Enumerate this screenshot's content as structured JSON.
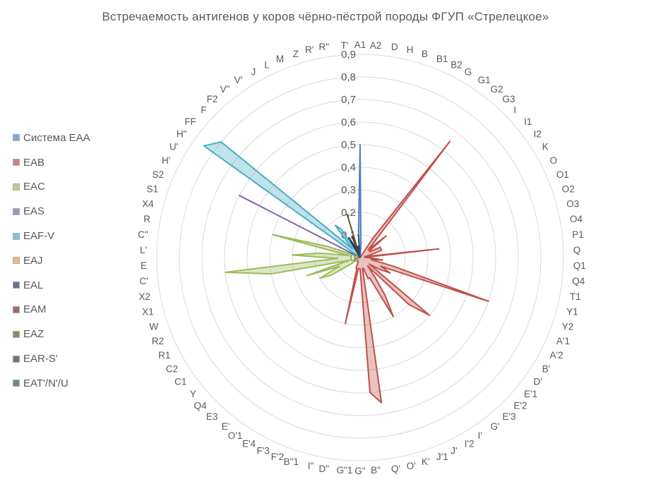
{
  "chart_data": {
    "type": "radar",
    "title": "Встречаемость  антигенов  у коров чёрно-пёстрой  породы ФГУП «Стрелецкое»",
    "rlim": [
      0,
      0.9
    ],
    "r_ticks": [
      "0",
      "0,1",
      "0,2",
      "0,3",
      "0,4",
      "0,5",
      "0,6",
      "0,7",
      "0,8",
      "0,9"
    ],
    "grid": true,
    "legend_position": "left",
    "categories": [
      "A1",
      "A2",
      "D",
      "H",
      "B",
      "B1",
      "B2",
      "G",
      "G1",
      "G2",
      "G3",
      "I",
      "I1",
      "I2",
      "K",
      "O",
      "O1",
      "O2",
      "O3",
      "O4",
      "P1",
      "Q",
      "Q1",
      "Q4",
      "T1",
      "Y1",
      "Y2",
      "A'1",
      "A'2",
      "B'",
      "D'",
      "E'1",
      "E'2",
      "E'3",
      "G'",
      "I'",
      "I'2",
      "J'",
      "J'1",
      "K'",
      "O'",
      "Q'",
      "B\"",
      "G\"",
      "G\"1",
      "D\"",
      "I\"",
      "B\"1",
      "F'2",
      "F'3",
      "E'4",
      "O'1",
      "E'",
      "E3",
      "Q4",
      "Y",
      "C1",
      "C2",
      "R1",
      "R2",
      "W",
      "X1",
      "X2",
      "C'",
      "E",
      "L'",
      "C\"",
      "R",
      "X4",
      "S1",
      "S2",
      "H'",
      "U'",
      "H\"",
      "FF",
      "F",
      "F2",
      "V\"",
      "V'",
      "J",
      "L",
      "M",
      "Z",
      "R'",
      "R\"",
      "T'"
    ],
    "series": [
      {
        "name": "Система ЕАА",
        "color": "#4F81BD",
        "values": [
          0.5,
          0.05,
          0,
          0,
          0,
          0,
          0,
          0,
          0,
          0,
          0,
          0,
          0,
          0,
          0,
          0,
          0,
          0,
          0,
          0,
          0,
          0,
          0,
          0,
          0,
          0,
          0,
          0,
          0,
          0,
          0,
          0,
          0,
          0,
          0,
          0,
          0,
          0,
          0,
          0,
          0,
          0,
          0,
          0,
          0,
          0,
          0,
          0,
          0,
          0,
          0,
          0,
          0,
          0,
          0,
          0,
          0,
          0,
          0,
          0,
          0,
          0,
          0,
          0,
          0,
          0,
          0,
          0,
          0,
          0,
          0,
          0,
          0,
          0,
          0,
          0,
          0,
          0,
          0,
          0,
          0,
          0,
          0,
          0,
          0,
          0.1
        ]
      },
      {
        "name": "EAB",
        "color": "#C0504D",
        "values": [
          0,
          0,
          0,
          0,
          0,
          0,
          0,
          0,
          0.1,
          0.65,
          0.1,
          0.05,
          0.15,
          0.05,
          0.05,
          0.1,
          0.1,
          0.1,
          0.05,
          0.02,
          0.35,
          0.02,
          0.05,
          0.1,
          0.05,
          0.15,
          0.6,
          0.1,
          0.15,
          0.1,
          0.05,
          0.4,
          0.3,
          0.05,
          0.1,
          0.2,
          0.3,
          0.1,
          0.1,
          0.05,
          0.05,
          0.65,
          0.6,
          0.05,
          0.05,
          0.05,
          0.3,
          0.05,
          0.05,
          0.02,
          0.02,
          0.02,
          0.02,
          0.02,
          0.02,
          0.02,
          0.02,
          0.02,
          0.02,
          0.02,
          0.02,
          0.02,
          0.02,
          0,
          0,
          0,
          0,
          0,
          0,
          0,
          0,
          0,
          0,
          0,
          0,
          0,
          0,
          0,
          0,
          0,
          0,
          0,
          0,
          0,
          0,
          0
        ]
      },
      {
        "name": "EAC",
        "color": "#9BBB59",
        "values": [
          0,
          0,
          0,
          0,
          0,
          0,
          0,
          0,
          0,
          0,
          0,
          0,
          0,
          0,
          0,
          0,
          0,
          0,
          0,
          0,
          0,
          0,
          0,
          0,
          0,
          0,
          0,
          0,
          0,
          0,
          0,
          0,
          0,
          0,
          0,
          0,
          0,
          0,
          0,
          0,
          0,
          0,
          0,
          0,
          0,
          0,
          0,
          0,
          0,
          0,
          0,
          0,
          0,
          0,
          0,
          0,
          0.05,
          0.15,
          0.2,
          0.1,
          0.25,
          0.05,
          0.4,
          0.6,
          0.1,
          0.3,
          0.18,
          0.05,
          0.4,
          0.15,
          0.02,
          0.02,
          0,
          0,
          0,
          0,
          0,
          0,
          0,
          0,
          0,
          0,
          0,
          0,
          0,
          0
        ]
      },
      {
        "name": "EAS",
        "color": "#8064A2",
        "values": [
          0,
          0,
          0,
          0,
          0,
          0,
          0,
          0,
          0,
          0,
          0,
          0,
          0,
          0,
          0,
          0,
          0,
          0,
          0,
          0,
          0,
          0,
          0,
          0,
          0,
          0,
          0,
          0,
          0,
          0,
          0,
          0,
          0,
          0,
          0,
          0,
          0,
          0,
          0,
          0,
          0,
          0,
          0,
          0,
          0,
          0,
          0,
          0,
          0,
          0,
          0,
          0,
          0,
          0,
          0,
          0,
          0,
          0,
          0,
          0,
          0,
          0,
          0,
          0,
          0,
          0,
          0,
          0,
          0,
          0,
          0,
          0.6,
          0,
          0,
          0,
          0,
          0,
          0,
          0,
          0,
          0,
          0,
          0,
          0,
          0,
          0
        ]
      },
      {
        "name": "EAF-V",
        "color": "#4BACC6",
        "values": [
          0,
          0,
          0,
          0,
          0,
          0,
          0,
          0,
          0,
          0,
          0,
          0,
          0,
          0,
          0,
          0,
          0,
          0,
          0,
          0,
          0,
          0,
          0,
          0,
          0,
          0,
          0,
          0,
          0,
          0,
          0,
          0,
          0,
          0,
          0,
          0,
          0,
          0,
          0,
          0,
          0,
          0,
          0,
          0,
          0,
          0,
          0,
          0,
          0,
          0,
          0,
          0,
          0,
          0,
          0,
          0,
          0,
          0,
          0,
          0,
          0,
          0,
          0,
          0,
          0,
          0,
          0,
          0,
          0,
          0,
          0,
          0,
          0,
          0.85,
          0.8,
          0.1,
          0.05,
          0.18,
          0.15,
          0,
          0,
          0,
          0,
          0,
          0,
          0
        ]
      },
      {
        "name": "EAJ",
        "color": "#F79646",
        "values": [
          0,
          0,
          0,
          0,
          0,
          0,
          0,
          0,
          0,
          0,
          0,
          0,
          0,
          0,
          0,
          0,
          0,
          0,
          0,
          0,
          0,
          0,
          0,
          0,
          0,
          0,
          0,
          0,
          0,
          0,
          0,
          0,
          0,
          0,
          0,
          0,
          0,
          0,
          0,
          0,
          0,
          0,
          0,
          0,
          0,
          0,
          0,
          0,
          0,
          0,
          0,
          0,
          0,
          0,
          0,
          0,
          0,
          0,
          0,
          0,
          0,
          0,
          0,
          0,
          0,
          0,
          0,
          0,
          0,
          0,
          0,
          0,
          0,
          0,
          0,
          0,
          0,
          0,
          0,
          0,
          0,
          0,
          0,
          0,
          0,
          0
        ]
      },
      {
        "name": "EAL",
        "color": "#1F3864",
        "values": [
          0,
          0,
          0,
          0,
          0,
          0,
          0,
          0,
          0,
          0,
          0,
          0,
          0,
          0,
          0,
          0,
          0,
          0,
          0,
          0,
          0,
          0,
          0,
          0,
          0,
          0,
          0,
          0,
          0,
          0,
          0,
          0,
          0,
          0,
          0,
          0,
          0,
          0,
          0,
          0,
          0,
          0,
          0,
          0,
          0,
          0,
          0,
          0,
          0,
          0,
          0,
          0,
          0,
          0,
          0,
          0,
          0,
          0,
          0,
          0,
          0,
          0,
          0,
          0,
          0,
          0,
          0,
          0,
          0,
          0,
          0,
          0,
          0,
          0,
          0,
          0,
          0,
          0,
          0,
          0.1,
          0.05,
          0,
          0,
          0,
          0,
          0
        ]
      },
      {
        "name": "EAM",
        "color": "#7F2A26",
        "values": [
          0,
          0,
          0,
          0,
          0,
          0,
          0,
          0,
          0,
          0,
          0,
          0,
          0,
          0,
          0,
          0,
          0,
          0,
          0,
          0,
          0,
          0,
          0,
          0,
          0,
          0,
          0,
          0,
          0,
          0,
          0,
          0,
          0,
          0,
          0,
          0,
          0,
          0,
          0,
          0,
          0,
          0,
          0,
          0,
          0,
          0,
          0,
          0,
          0,
          0,
          0,
          0,
          0,
          0,
          0,
          0,
          0,
          0,
          0,
          0,
          0,
          0,
          0,
          0,
          0,
          0,
          0,
          0,
          0,
          0,
          0,
          0,
          0,
          0,
          0,
          0,
          0,
          0,
          0,
          0,
          0,
          0.1,
          0,
          0,
          0,
          0
        ]
      },
      {
        "name": "EAZ",
        "color": "#4F6228",
        "values": [
          0,
          0,
          0,
          0,
          0,
          0,
          0,
          0,
          0,
          0,
          0,
          0,
          0,
          0,
          0,
          0,
          0,
          0,
          0,
          0,
          0,
          0,
          0,
          0,
          0,
          0,
          0,
          0,
          0,
          0,
          0,
          0,
          0,
          0,
          0,
          0,
          0,
          0,
          0,
          0,
          0,
          0,
          0,
          0,
          0,
          0,
          0,
          0,
          0,
          0,
          0,
          0,
          0,
          0,
          0,
          0,
          0,
          0,
          0,
          0,
          0,
          0,
          0,
          0,
          0,
          0,
          0,
          0,
          0,
          0,
          0,
          0,
          0,
          0,
          0,
          0,
          0,
          0,
          0,
          0,
          0,
          0,
          0.2,
          0,
          0,
          0
        ]
      },
      {
        "name": "EAR-S'",
        "color": "#3F3151",
        "values": [
          0,
          0,
          0,
          0,
          0,
          0,
          0,
          0,
          0,
          0,
          0,
          0,
          0,
          0,
          0,
          0,
          0,
          0,
          0,
          0,
          0,
          0,
          0,
          0,
          0,
          0,
          0,
          0,
          0,
          0,
          0,
          0,
          0,
          0,
          0,
          0,
          0,
          0,
          0,
          0,
          0,
          0,
          0,
          0,
          0,
          0,
          0,
          0,
          0,
          0,
          0,
          0,
          0,
          0,
          0,
          0,
          0,
          0,
          0,
          0,
          0,
          0,
          0,
          0,
          0,
          0,
          0,
          0,
          0,
          0,
          0,
          0,
          0,
          0,
          0,
          0,
          0,
          0,
          0,
          0,
          0,
          0,
          0,
          0.05,
          0.05,
          0
        ]
      },
      {
        "name": "EAT'/N'/U",
        "color": "#215968",
        "values": [
          0,
          0,
          0,
          0,
          0,
          0,
          0,
          0,
          0,
          0,
          0,
          0,
          0,
          0,
          0,
          0,
          0,
          0,
          0,
          0,
          0,
          0,
          0,
          0,
          0,
          0,
          0,
          0,
          0,
          0,
          0,
          0,
          0,
          0,
          0,
          0,
          0,
          0,
          0,
          0,
          0,
          0,
          0,
          0,
          0,
          0,
          0,
          0,
          0,
          0,
          0,
          0,
          0,
          0,
          0,
          0,
          0,
          0,
          0,
          0,
          0,
          0,
          0,
          0,
          0,
          0,
          0,
          0,
          0,
          0,
          0,
          0,
          0,
          0,
          0,
          0,
          0,
          0,
          0,
          0,
          0,
          0,
          0,
          0,
          0,
          0.1
        ]
      }
    ]
  }
}
